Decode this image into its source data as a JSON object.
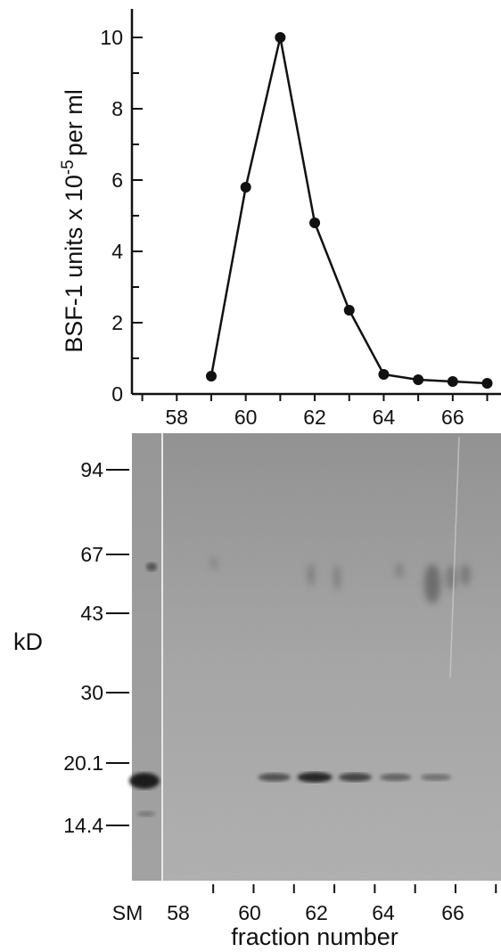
{
  "chart_data": [
    {
      "type": "line",
      "ylabel": "BSF-1 units x 10",
      "ylabel_exponent": "-5",
      "ylabel_suffix": "per ml",
      "xlim": [
        56.7,
        67.4
      ],
      "ylim": [
        0,
        10.8
      ],
      "x_ticks": [
        58,
        60,
        62,
        64,
        66
      ],
      "y_ticks": [
        0,
        2,
        4,
        6,
        8,
        10
      ],
      "series": [
        {
          "x": [
            59,
            60,
            61,
            62,
            63,
            64,
            65,
            66,
            67
          ],
          "y": [
            0.5,
            5.8,
            10.0,
            4.8,
            2.35,
            0.55,
            0.4,
            0.35,
            0.3
          ]
        }
      ]
    },
    {
      "type": "gel",
      "ylabel": "kD",
      "xlabel": "fraction number",
      "marker_labels": [
        "94",
        "67",
        "43",
        "30",
        "20.1",
        "14.4"
      ],
      "lane_labels": [
        "SM",
        "58",
        "60",
        "62",
        "64",
        "66"
      ],
      "band_intensity_by_fraction": [
        {
          "fraction": 60,
          "intensity": 0.55
        },
        {
          "fraction": 61,
          "intensity": 0.9
        },
        {
          "fraction": 62,
          "intensity": 0.65
        },
        {
          "fraction": 63,
          "intensity": 0.4
        },
        {
          "fraction": 64,
          "intensity": 0.3
        }
      ]
    }
  ]
}
